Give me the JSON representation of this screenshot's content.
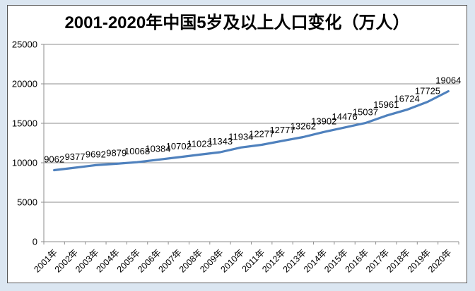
{
  "chart_data": {
    "type": "line",
    "title": "2001-2020年中国5岁及以上人口变化（万人）",
    "categories": [
      "2001年",
      "2002年",
      "2003年",
      "2004年",
      "2005年",
      "2006年",
      "2007年",
      "2008年",
      "2009年",
      "2010年",
      "2011年",
      "2012年",
      "2013年",
      "2014年",
      "2015年",
      "2016年",
      "2017年",
      "2018年",
      "2019年",
      "2020年"
    ],
    "values": [
      9062,
      9377,
      9692,
      9879,
      10068,
      10384,
      10702,
      11023,
      11343,
      11934,
      12277,
      12777,
      13262,
      13902,
      14476,
      15037,
      15961,
      16724,
      17725,
      19064
    ],
    "data_labels": [
      "9062",
      "9377",
      "9692",
      "9879",
      "10068",
      "10384",
      "10702",
      "11023",
      "11343",
      "11934",
      "12277",
      "12777",
      "13262",
      "13902",
      "14476",
      "15037",
      "15961",
      "16724",
      "17725",
      "19064"
    ],
    "ytick_labels": [
      "0",
      "5000",
      "10000",
      "15000",
      "20000",
      "25000"
    ],
    "yticks": [
      0,
      5000,
      10000,
      15000,
      20000,
      25000
    ],
    "ylim": [
      0,
      25000
    ],
    "xlabel": "",
    "ylabel": "",
    "legend": "none",
    "grid": "horizontal"
  },
  "colors": {
    "page_background": "#dbe6f1",
    "card_background": "#ffffff",
    "card_border": "#565656",
    "line": "#4f81bd",
    "axis": "#8e8e8e",
    "gridline": "#8e8e8e",
    "text": "#000000"
  }
}
